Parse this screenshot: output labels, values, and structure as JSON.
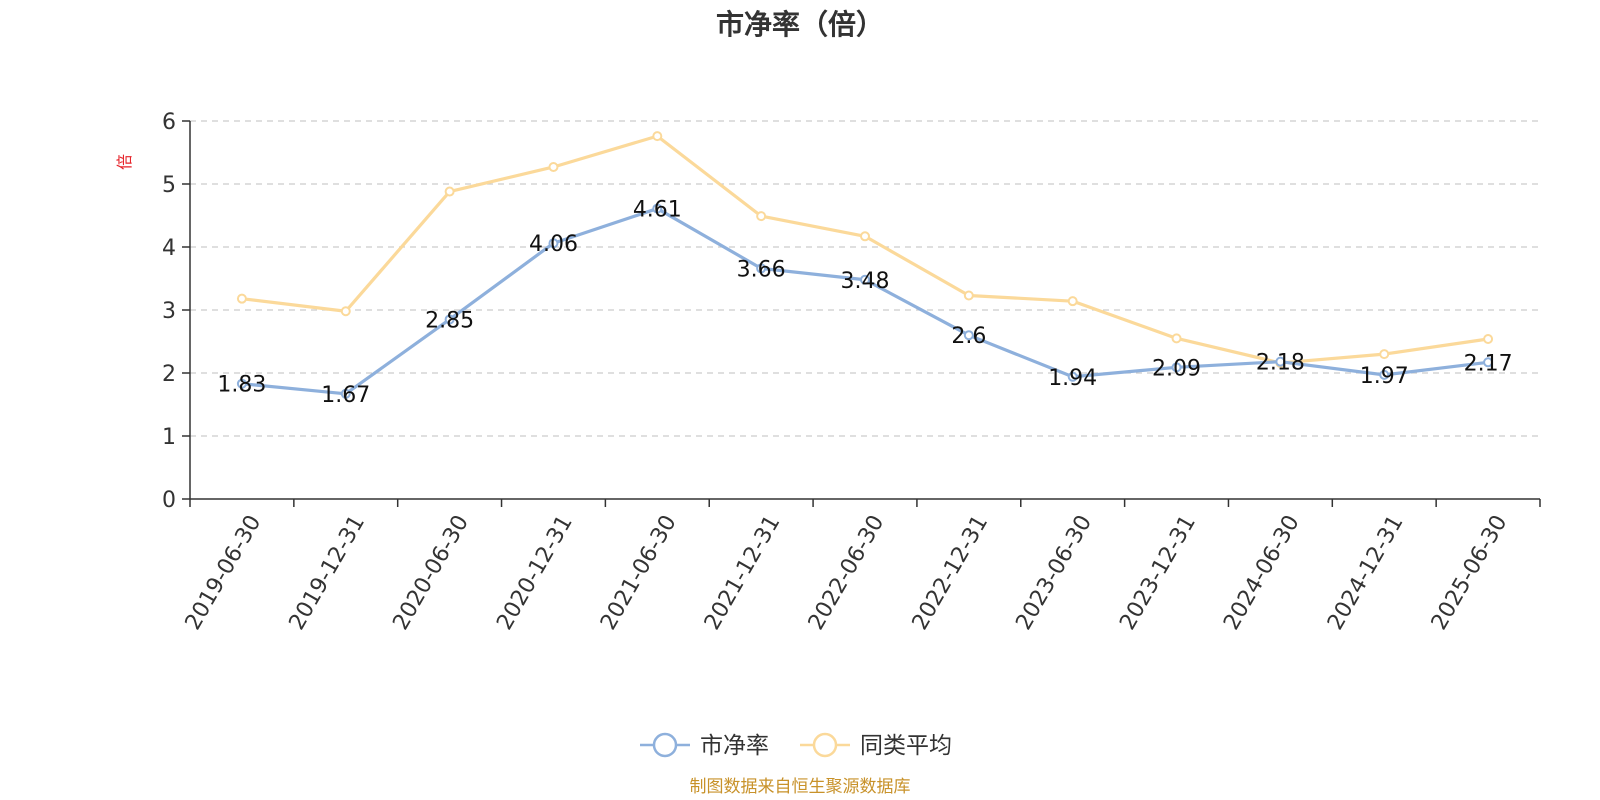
{
  "chart_data": {
    "type": "line",
    "title": "市净率（倍）",
    "xlabel": "",
    "ylabel": "倍",
    "categories": [
      "2019-06-30",
      "2019-12-31",
      "2020-06-30",
      "2020-12-31",
      "2021-06-30",
      "2021-12-31",
      "2022-06-30",
      "2022-12-31",
      "2023-06-30",
      "2023-12-31",
      "2024-06-30",
      "2024-12-31",
      "2025-06-30"
    ],
    "ylim": [
      0,
      6
    ],
    "yticks": [
      0,
      1,
      2,
      3,
      4,
      5,
      6
    ],
    "grid": true,
    "legend_position": "bottom-center",
    "series": [
      {
        "name": "市净率",
        "color": "#8eb0dc",
        "values": [
          1.83,
          1.67,
          2.85,
          4.06,
          4.61,
          3.66,
          3.48,
          2.6,
          1.94,
          2.09,
          2.18,
          1.97,
          2.17
        ],
        "labels": [
          "1.83",
          "1.67",
          "2.85",
          "4.06",
          "4.61",
          "3.66",
          "3.48",
          "2.6",
          "1.94",
          "2.09",
          "2.18",
          "1.97",
          "2.17"
        ]
      },
      {
        "name": "同类平均",
        "color": "#fbd99a",
        "values": [
          3.18,
          2.98,
          4.88,
          5.27,
          5.76,
          4.49,
          4.17,
          3.23,
          3.14,
          2.55,
          2.16,
          2.3,
          2.54
        ]
      }
    ],
    "source": "制图数据来自恒生聚源数据库"
  }
}
